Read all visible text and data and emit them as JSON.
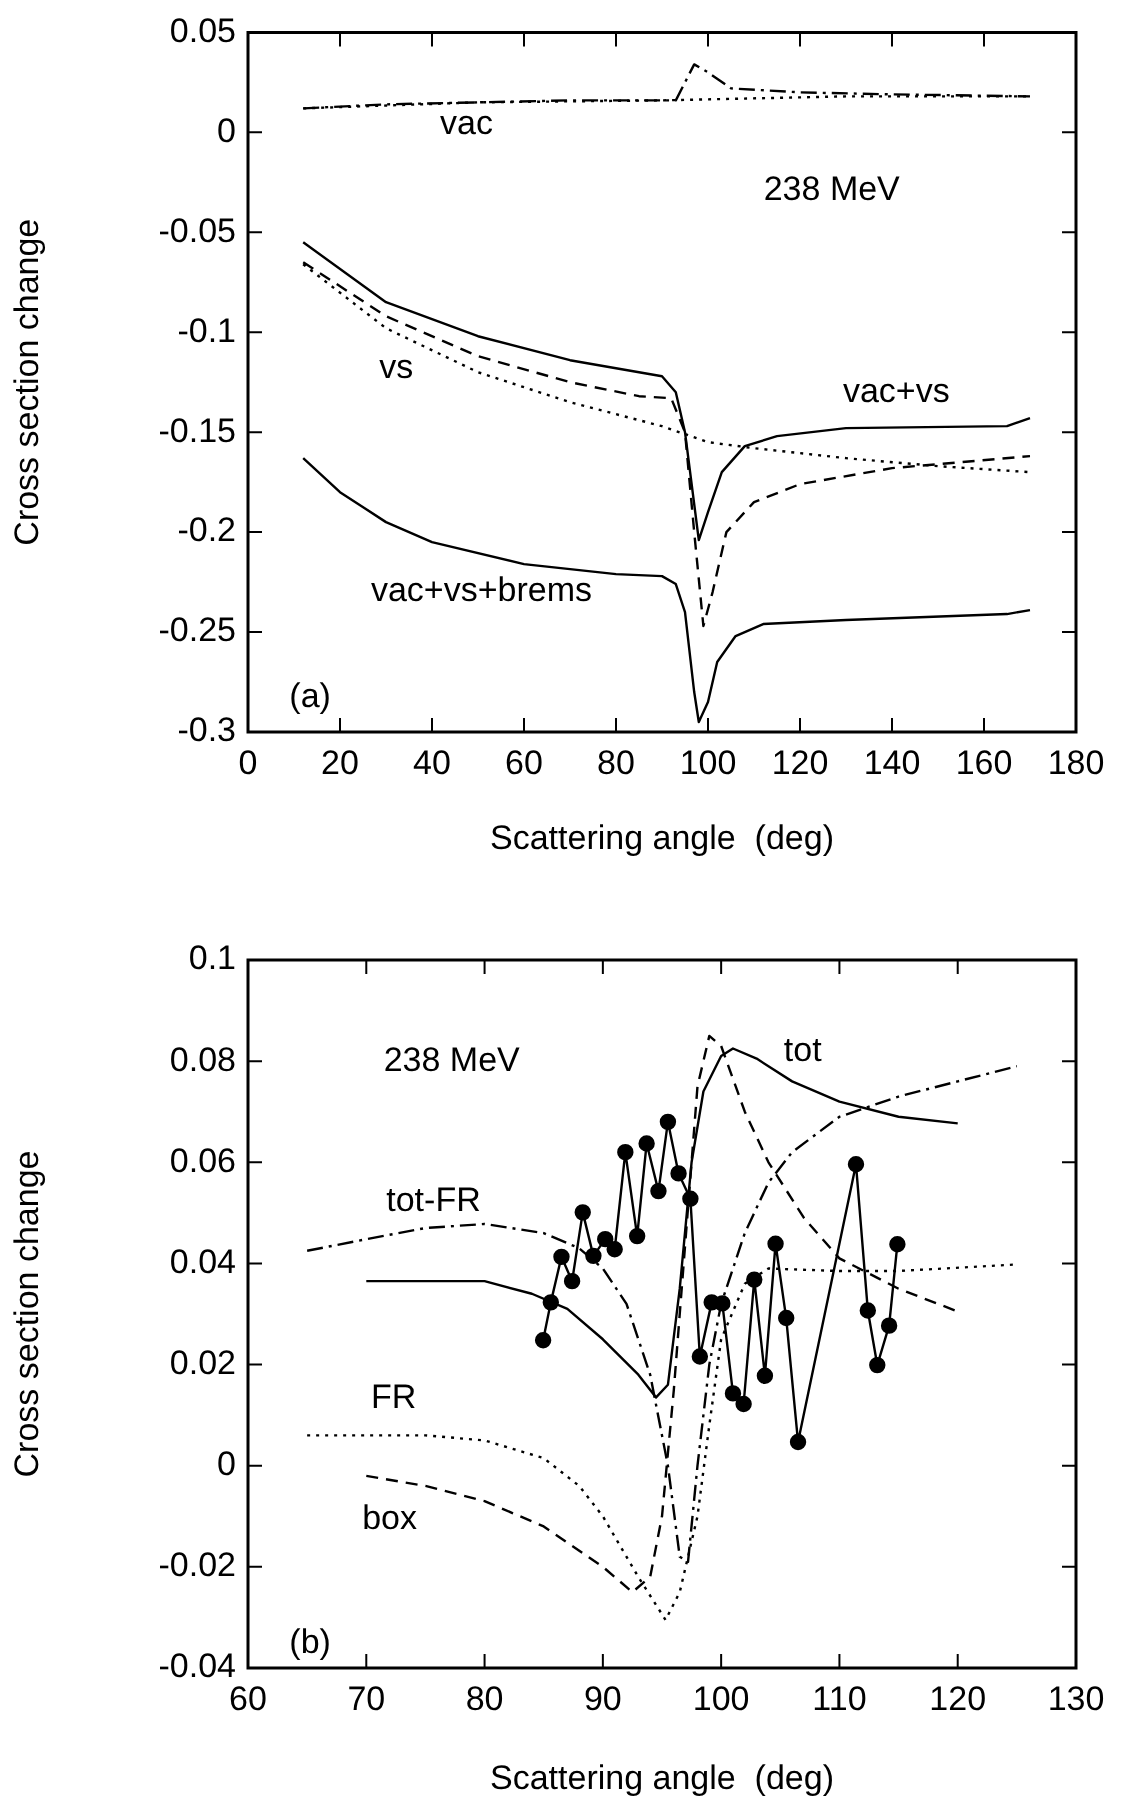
{
  "chart_data": [
    {
      "type": "line",
      "xlabel": "Scattering angle  (deg)",
      "ylabel": "Cross section change",
      "xlim": [
        0,
        180
      ],
      "xticks": [
        0,
        20,
        40,
        60,
        80,
        100,
        120,
        140,
        160,
        180
      ],
      "ylim": [
        -0.3,
        0.05
      ],
      "yticks": [
        -0.3,
        -0.25,
        -0.2,
        -0.15,
        -0.1,
        -0.05,
        0,
        0.05
      ],
      "grid": false,
      "legend": false,
      "marker": "none",
      "annotations": [
        "238 MeV",
        "(a)"
      ],
      "series": [
        {
          "name": "vac",
          "color": "#000000",
          "line_style": "dashdot",
          "x": [
            12,
            30,
            50,
            70,
            90,
            93,
            95,
            97,
            100,
            105,
            120,
            140,
            170
          ],
          "values": [
            0.012,
            0.014,
            0.015,
            0.016,
            0.016,
            0.016,
            0.025,
            0.034,
            0.03,
            0.022,
            0.02,
            0.019,
            0.018
          ]
        },
        {
          "color": "#000000",
          "line_style": "dotted",
          "x": [
            12,
            50,
            90,
            130,
            170
          ],
          "values": [
            0.012,
            0.015,
            0.016,
            0.018,
            0.018
          ]
        },
        {
          "name": "vac+vs",
          "color": "#000000",
          "line_style": "solid",
          "x": [
            12,
            30,
            50,
            70,
            85,
            90,
            93,
            95,
            98,
            100,
            103,
            108,
            115,
            130,
            165,
            170
          ],
          "values": [
            -0.055,
            -0.085,
            -0.102,
            -0.114,
            -0.12,
            -0.122,
            -0.13,
            -0.15,
            -0.204,
            -0.19,
            -0.17,
            -0.157,
            -0.152,
            -0.148,
            -0.147,
            -0.143
          ]
        },
        {
          "name": "vs",
          "color": "#000000",
          "line_style": "dashed",
          "x": [
            12,
            30,
            50,
            70,
            85,
            92,
            95,
            97,
            99,
            101,
            104,
            110,
            120,
            140,
            170
          ],
          "values": [
            -0.065,
            -0.092,
            -0.112,
            -0.125,
            -0.132,
            -0.133,
            -0.15,
            -0.2,
            -0.247,
            -0.23,
            -0.2,
            -0.185,
            -0.176,
            -0.168,
            -0.162
          ]
        },
        {
          "color": "#000000",
          "line_style": "dotted",
          "x": [
            12,
            30,
            50,
            70,
            90,
            100,
            110,
            130,
            150,
            170
          ],
          "values": [
            -0.066,
            -0.098,
            -0.12,
            -0.135,
            -0.147,
            -0.155,
            -0.158,
            -0.163,
            -0.167,
            -0.17
          ]
        },
        {
          "name": "vac+vs+brems",
          "color": "#000000",
          "line_style": "solid",
          "x": [
            12,
            20,
            30,
            40,
            60,
            80,
            90,
            93,
            95,
            97,
            98,
            100,
            102,
            106,
            112,
            130,
            165,
            170
          ],
          "values": [
            -0.163,
            -0.18,
            -0.195,
            -0.205,
            -0.216,
            -0.221,
            -0.222,
            -0.226,
            -0.24,
            -0.28,
            -0.295,
            -0.285,
            -0.265,
            -0.252,
            -0.246,
            -0.244,
            -0.241,
            -0.239
          ]
        }
      ]
    },
    {
      "type": "line",
      "xlabel": "Scattering angle  (deg)",
      "ylabel": "Cross section change",
      "xlim": [
        60,
        130
      ],
      "xticks": [
        60,
        70,
        80,
        90,
        100,
        110,
        120,
        130
      ],
      "ylim": [
        -0.04,
        0.1
      ],
      "yticks": [
        -0.04,
        -0.02,
        0,
        0.02,
        0.04,
        0.06,
        0.08,
        0.1
      ],
      "grid": false,
      "legend": false,
      "annotations": [
        "238 MeV",
        "(b)"
      ],
      "series": [
        {
          "name": "tot",
          "color": "#000000",
          "line_style": "solid",
          "marker": "none",
          "x": [
            70,
            80,
            84,
            87,
            90,
            93,
            94.5,
            95.5,
            96.5,
            97.5,
            98.5,
            100,
            101,
            103,
            106,
            110,
            115,
            120
          ],
          "values": [
            0.0365,
            0.0365,
            0.034,
            0.031,
            0.025,
            0.018,
            0.0135,
            0.016,
            0.035,
            0.06,
            0.074,
            0.081,
            0.0825,
            0.0805,
            0.076,
            0.072,
            0.069,
            0.0677
          ]
        },
        {
          "name": "tot-FR",
          "color": "#000000",
          "line_style": "dashdot",
          "marker": "none",
          "x": [
            65,
            70,
            75,
            80,
            85,
            88,
            90,
            92,
            94,
            95.5,
            96.5,
            97.2,
            98,
            99,
            100,
            102,
            104,
            106,
            110,
            115,
            120,
            125
          ],
          "values": [
            0.0425,
            0.0448,
            0.047,
            0.0478,
            0.046,
            0.043,
            0.039,
            0.032,
            0.018,
            0,
            -0.018,
            -0.019,
            0,
            0.02,
            0.032,
            0.046,
            0.056,
            0.062,
            0.069,
            0.073,
            0.076,
            0.079
          ]
        },
        {
          "name": "box",
          "color": "#000000",
          "line_style": "dashed",
          "marker": "none",
          "x": [
            70,
            75,
            80,
            85,
            90,
            92.5,
            94,
            95,
            96,
            97,
            98,
            99,
            100,
            102,
            104,
            107,
            110,
            115,
            120
          ],
          "values": [
            -0.002,
            -0.004,
            -0.007,
            -0.012,
            -0.02,
            -0.025,
            -0.022,
            -0.01,
            0.015,
            0.045,
            0.075,
            0.085,
            0.083,
            0.07,
            0.06,
            0.049,
            0.041,
            0.035,
            0.0305
          ]
        },
        {
          "name": "FR",
          "color": "#000000",
          "line_style": "dotted",
          "marker": "none",
          "x": [
            65,
            75,
            80,
            85,
            88,
            90,
            93,
            95.3,
            96.5,
            98,
            99,
            100,
            102,
            104,
            110,
            115,
            125
          ],
          "values": [
            0.006,
            0.006,
            0.005,
            0.0015,
            -0.004,
            -0.01,
            -0.022,
            -0.0305,
            -0.025,
            -0.01,
            0.008,
            0.025,
            0.036,
            0.039,
            0.0385,
            0.0385,
            0.0398
          ]
        },
        {
          "color": "#000000",
          "line_style": "solid",
          "marker": "circle",
          "x": [
            84.95,
            85.6,
            86.5,
            87.4,
            88.3,
            89.2,
            90.2,
            91,
            91.9,
            92.9,
            93.7,
            94.7,
            95.5,
            96.4,
            97.4,
            98.2,
            99.2,
            100.1,
            101,
            101.9,
            102.8,
            103.7,
            104.6,
            105.5,
            106.5,
            111.4,
            112.4,
            113.2,
            114.2,
            114.9
          ],
          "values": [
            0.0248,
            0.0323,
            0.0413,
            0.0365,
            0.0501,
            0.0415,
            0.0448,
            0.0428,
            0.062,
            0.0454,
            0.0637,
            0.0543,
            0.068,
            0.0578,
            0.0528,
            0.0216,
            0.0323,
            0.0321,
            0.0143,
            0.0122,
            0.0368,
            0.0178,
            0.0439,
            0.0292,
            0.0047,
            0.0596,
            0.0307,
            0.0199,
            0.0277,
            0.0438
          ]
        }
      ]
    }
  ]
}
